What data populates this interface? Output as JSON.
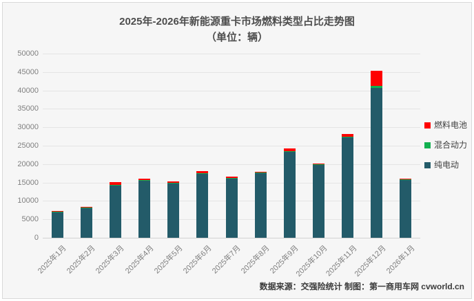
{
  "window": {
    "background": "#f6f6f6",
    "border_color": "#d9d9d9"
  },
  "title": {
    "line1": "2025年-2026年新能源重卡市场燃料类型占比走势图",
    "line2": "（单位：辆）"
  },
  "footer": {
    "text": "数据来源：交强险统计  制图：第一商用车网 cvworld.cn"
  },
  "legend": {
    "position": "right",
    "items": [
      {
        "label": "燃料电池",
        "slug": "fuel-cell",
        "color": "#fe0000"
      },
      {
        "label": "混合动力",
        "slug": "hybrid",
        "color": "#12b050"
      },
      {
        "label": "纯电动",
        "slug": "pure-electric",
        "color": "#235b69"
      }
    ]
  },
  "chart_data": {
    "type": "bar",
    "stacked": true,
    "title": "2025年-2026年新能源重卡市场燃料类型占比走势图",
    "subtitle": "（单位：辆）",
    "xlabel": "",
    "ylabel": "",
    "ylim": [
      0,
      50000
    ],
    "ytick_step": 5000,
    "yticks": [
      0,
      5000,
      10000,
      15000,
      20000,
      25000,
      30000,
      35000,
      40000,
      45000,
      50000
    ],
    "grid": true,
    "legend_position": "right",
    "categories": [
      "2025年1月",
      "2025年2月",
      "2025年3月",
      "2025年4月",
      "2025年5月",
      "2025年6月",
      "2025年7月",
      "2025年8月",
      "2025年9月",
      "2025年10月",
      "2025年11月",
      "2025年12月",
      "2026年1月"
    ],
    "series": [
      {
        "name": "纯电动",
        "slug": "pure-electric",
        "color": "#235b69",
        "values": [
          6950,
          8000,
          14100,
          15500,
          14800,
          17400,
          16100,
          17450,
          23300,
          19700,
          27200,
          40700,
          15700
        ]
      },
      {
        "name": "混合动力",
        "slug": "hybrid",
        "color": "#12b050",
        "values": [
          30,
          30,
          100,
          120,
          120,
          150,
          100,
          150,
          100,
          100,
          100,
          600,
          100
        ]
      },
      {
        "name": "燃料电池",
        "slug": "fuel-cell",
        "color": "#fe0000",
        "values": [
          220,
          170,
          800,
          280,
          280,
          450,
          400,
          200,
          700,
          300,
          800,
          4000,
          250
        ]
      }
    ]
  }
}
